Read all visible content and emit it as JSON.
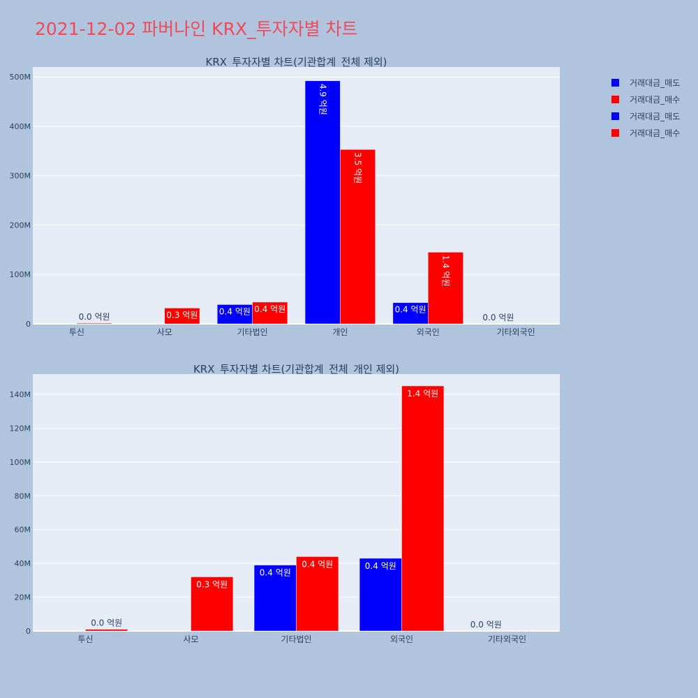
{
  "page": {
    "title": "2021-12-02 파버나인 KRX_투자자별 차트"
  },
  "colors": {
    "sell": "#0000ff",
    "buy": "#ff0000",
    "plot_bg": "#e5ecf6",
    "page_bg": "#b0c4de",
    "title": "#ef4a5a"
  },
  "legend": {
    "items": [
      {
        "label": "거래대금_매도",
        "color": "#0000ff"
      },
      {
        "label": "거래대금_매수",
        "color": "#ff0000"
      },
      {
        "label": "거래대금_매도",
        "color": "#0000ff"
      },
      {
        "label": "거래대금_매수",
        "color": "#ff0000"
      }
    ]
  },
  "chart_data": [
    {
      "type": "bar",
      "title": "KRX_투자자별 차트(기관합계_전체 제외)",
      "categories": [
        "투신",
        "사모",
        "기타법인",
        "개인",
        "외국인",
        "기타외국인"
      ],
      "series": [
        {
          "name": "거래대금_매도",
          "values": [
            0,
            0,
            39000000,
            492000000,
            43000000,
            0
          ],
          "labels": [
            "",
            "",
            "0.4 억원",
            "4.9 억원",
            "0.4 억원",
            "0.0 억원"
          ]
        },
        {
          "name": "거래대금_매수",
          "values": [
            1000000,
            32000000,
            44000000,
            353000000,
            145000000,
            0
          ],
          "labels": [
            "0.0 억원",
            "0.3 억원",
            "0.4 억원",
            "3.5 억원",
            "1.4 억원",
            ""
          ]
        }
      ],
      "ylim": [
        0,
        520000000
      ],
      "yticks": [
        0,
        100000000,
        200000000,
        300000000,
        400000000,
        500000000
      ],
      "ytick_labels": [
        "0",
        "100M",
        "200M",
        "300M",
        "400M",
        "500M"
      ],
      "grid": true
    },
    {
      "type": "bar",
      "title": "KRX_투자자별 차트(기관합계_전체_개인 제외)",
      "categories": [
        "투신",
        "사모",
        "기타법인",
        "외국인",
        "기타외국인"
      ],
      "series": [
        {
          "name": "거래대금_매도",
          "values": [
            0,
            0,
            39000000,
            43000000,
            0
          ],
          "labels": [
            "",
            "",
            "0.4 억원",
            "0.4 억원",
            "0.0 억원"
          ]
        },
        {
          "name": "거래대금_매수",
          "values": [
            1000000,
            32000000,
            44000000,
            145000000,
            0
          ],
          "labels": [
            "0.0 억원",
            "0.3 억원",
            "0.4 억원",
            "1.4 억원",
            ""
          ]
        }
      ],
      "ylim": [
        0,
        152000000
      ],
      "yticks": [
        0,
        20000000,
        40000000,
        60000000,
        80000000,
        100000000,
        120000000,
        140000000
      ],
      "ytick_labels": [
        "0",
        "20M",
        "40M",
        "60M",
        "80M",
        "100M",
        "120M",
        "140M"
      ],
      "grid": true
    }
  ]
}
